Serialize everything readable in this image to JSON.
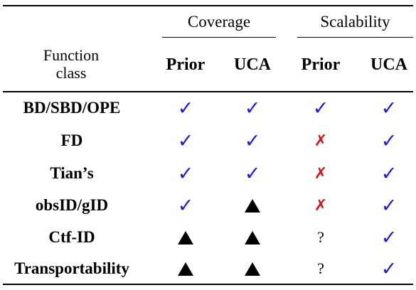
{
  "header": {
    "function_class": "Function class",
    "groups": [
      {
        "label": "Coverage",
        "columns": [
          "Prior",
          "UCA"
        ]
      },
      {
        "label": "Scalability",
        "columns": [
          "Prior",
          "UCA"
        ]
      }
    ]
  },
  "rows": [
    {
      "label": "BD/SBD/OPE",
      "cells": [
        "check",
        "check",
        "check",
        "check"
      ]
    },
    {
      "label": "FD",
      "cells": [
        "check",
        "check",
        "cross",
        "check"
      ]
    },
    {
      "label": "Tian’s",
      "cells": [
        "check",
        "check",
        "cross",
        "check"
      ]
    },
    {
      "label": "obsID/gID",
      "cells": [
        "check",
        "triangle",
        "cross",
        "check"
      ]
    },
    {
      "label": "Ctf-ID",
      "cells": [
        "triangle",
        "triangle",
        "question",
        "check"
      ]
    },
    {
      "label": "Transportability",
      "cells": [
        "triangle",
        "triangle",
        "question",
        "check"
      ]
    }
  ],
  "symbols": {
    "check": "✓",
    "cross": "✗",
    "question": "?",
    "triangle": "triangle"
  },
  "colors": {
    "check": "#1a1ae6",
    "cross": "#e01010",
    "triangle": "#000000"
  }
}
